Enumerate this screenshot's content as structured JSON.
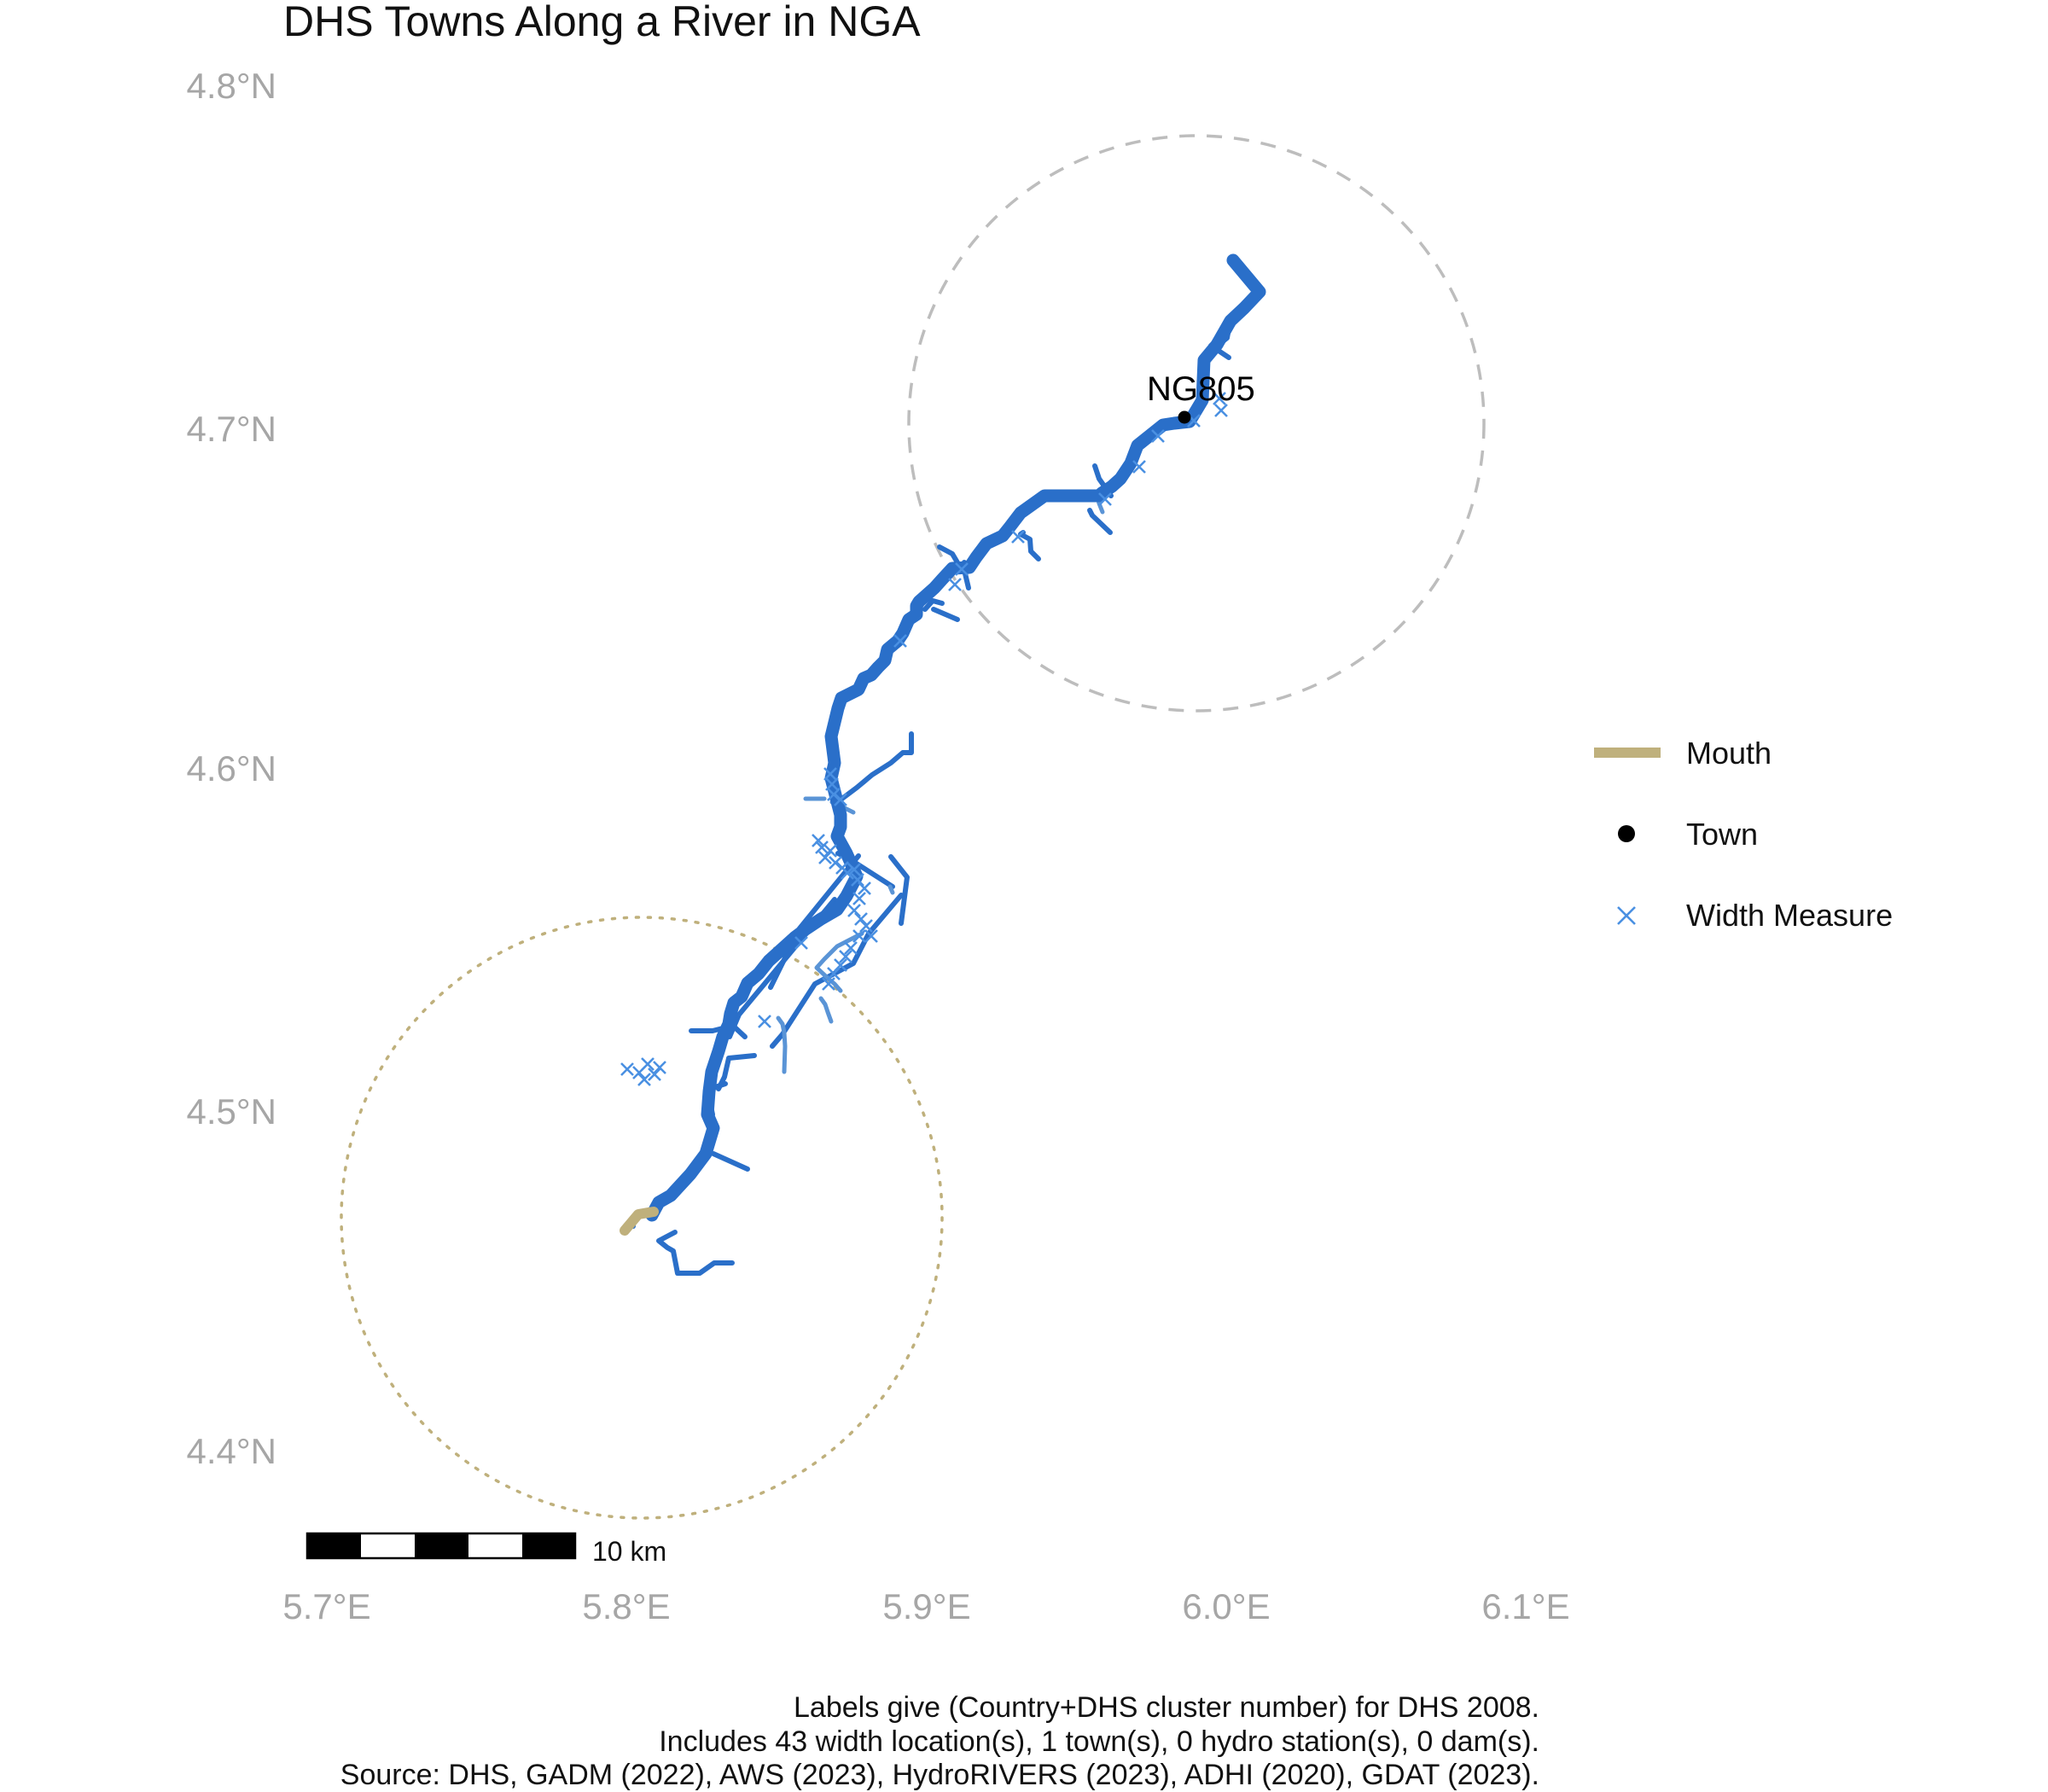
{
  "title": "DHS Towns Along a River in NGA",
  "y_ticks": [
    "4.8°N",
    "4.7°N",
    "4.6°N",
    "4.5°N",
    "4.4°N"
  ],
  "x_ticks": [
    "5.7°E",
    "5.8°E",
    "5.9°E",
    "6.0°E",
    "6.1°E"
  ],
  "town": {
    "label": "NG805",
    "lon": 5.99,
    "lat": 4.702
  },
  "legend": {
    "items": [
      {
        "label": "Mouth",
        "symbol": "line",
        "color": "#BFB07C"
      },
      {
        "label": "Town",
        "symbol": "dot",
        "color": "#000000"
      },
      {
        "label": "Width Measure",
        "symbol": "x",
        "color": "#4A90E2"
      }
    ]
  },
  "scale_bar": {
    "label": "10 km"
  },
  "caption": {
    "line1": "Labels give (Country+DHS cluster number) for DHS 2008.",
    "line2": "Includes 43 width location(s), 1 town(s), 0 hydro station(s), 0 dam(s).",
    "line3": "Source: DHS, GADM (2022), AWS (2023), HydroRIVERS (2023), ADHI (2020), GDAT (2023)."
  },
  "colors": {
    "river": "#2A6FC9",
    "river_thin": "#3D7FD6",
    "width_measure": "#4A90E2",
    "mouth": "#BFB07C",
    "buffer_town": "#BDBDBD",
    "buffer_mouth": "#BFB07C",
    "axis_text": "#A6A6A6"
  }
}
